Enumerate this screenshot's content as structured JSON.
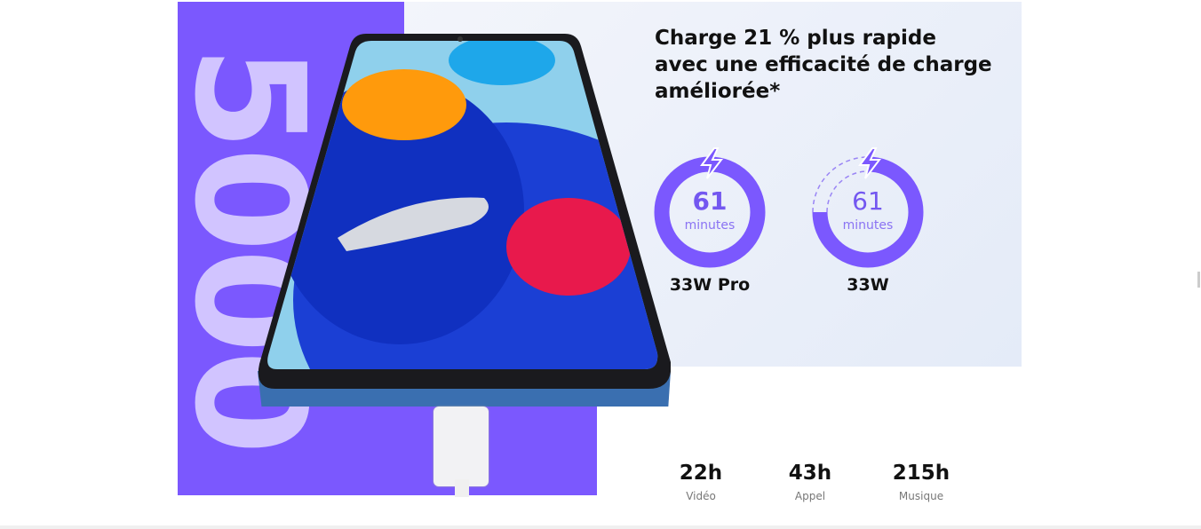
{
  "hero": {
    "capacity_text": "5000"
  },
  "headline": "Charge 21 % plus rapide avec une efficacité de charge améliorée*",
  "chargers": [
    {
      "value": "61",
      "unit": "minutes",
      "label": "33W Pro",
      "icon": "lightning-icon"
    },
    {
      "value": "61",
      "unit": "minutes",
      "label": "33W",
      "icon": "lightning-icon"
    }
  ],
  "stats": [
    {
      "value": "22h",
      "label": "Vidéo"
    },
    {
      "value": "43h",
      "label": "Appel"
    },
    {
      "value": "215h",
      "label": "Musique"
    }
  ],
  "colors": {
    "accent": "#7b58fe",
    "panel": "#e8eef9"
  }
}
